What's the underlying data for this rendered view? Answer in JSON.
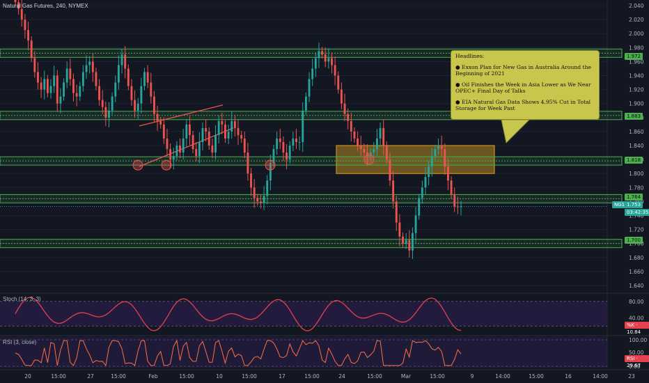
{
  "title": "Natural Gas Futures, 240, NYMEX",
  "headlines": {
    "title": "Headlines:",
    "items": [
      "● Exxon Plan for New Gas in Australia Around the Beginning of 2021",
      "● Oil Finishes the Week in Asia Lower as We Near OPEC+ Final Day of Talks",
      "● EIA Natural Gas Data Shows 4.95% Cut in Total Storage for Week Past"
    ]
  },
  "colors": {
    "background": "#131722",
    "up": "#26a69a",
    "down": "#ef5350",
    "level": "#4caf50",
    "zone": "#d8a21e",
    "stoch": "#e5414e",
    "rsi": "#ff7043",
    "pane_bg": "#2a1e4a"
  },
  "chart_data": {
    "type": "candlestick",
    "title": "Natural Gas Futures, 240, NYMEX",
    "x_ticks": [
      "20",
      "15:00",
      "27",
      "15:00",
      "Feb",
      "15:00",
      "10",
      "15:00",
      "17",
      "15:00",
      "24",
      "15:00",
      "Mar",
      "15:00",
      "9",
      "14:00",
      "15:00",
      "16",
      "14:00",
      "23"
    ],
    "y_ticks": [
      "2.040",
      "2.020",
      "2.000",
      "1.980",
      "1.960",
      "1.940",
      "1.920",
      "1.900",
      "1.880",
      "1.860",
      "1.840",
      "1.820",
      "1.800",
      "1.780",
      "1.760",
      "1.740",
      "1.720",
      "1.700",
      "1.680",
      "1.660",
      "1.640"
    ],
    "ylim": [
      1.632,
      2.048
    ],
    "support_resistance_levels": [
      {
        "label": "1.972",
        "value": 1.972
      },
      {
        "label": "1.883",
        "value": 1.883
      },
      {
        "label": "1.818",
        "value": 1.818
      },
      {
        "label": "1.764",
        "value": 1.764
      },
      {
        "label": "1.700",
        "value": 1.7
      }
    ],
    "current_price": {
      "symbol": "NG1!",
      "value": "1.753",
      "countdown": "03:42:35"
    },
    "series_closes": [
      2.045,
      2.035,
      2.02,
      2.005,
      1.99,
      1.965,
      1.945,
      1.93,
      1.92,
      1.935,
      1.915,
      1.925,
      1.94,
      1.9,
      1.91,
      1.93,
      1.95,
      1.935,
      1.915,
      1.91,
      1.925,
      1.945,
      1.955,
      1.96,
      1.945,
      1.925,
      1.905,
      1.895,
      1.88,
      1.89,
      1.91,
      1.93,
      1.955,
      1.97,
      1.95,
      1.925,
      1.905,
      1.89,
      1.9,
      1.925,
      1.945,
      1.93,
      1.91,
      1.885,
      1.875,
      1.87,
      1.85,
      1.835,
      1.82,
      1.825,
      1.84,
      1.83,
      1.85,
      1.87,
      1.855,
      1.835,
      1.825,
      1.845,
      1.865,
      1.86,
      1.84,
      1.83,
      1.855,
      1.875,
      1.87,
      1.85,
      1.86,
      1.875,
      1.865,
      1.855,
      1.85,
      1.83,
      1.8,
      1.78,
      1.765,
      1.76,
      1.758,
      1.768,
      1.79,
      1.815,
      1.835,
      1.85,
      1.845,
      1.83,
      1.82,
      1.84,
      1.85,
      1.845,
      1.845,
      1.89,
      1.91,
      1.935,
      1.95,
      1.965,
      1.975,
      1.97,
      1.96,
      1.965,
      1.955,
      1.94,
      1.92,
      1.9,
      1.885,
      1.875,
      1.86,
      1.85,
      1.84,
      1.835,
      1.83,
      1.825,
      1.83,
      1.835,
      1.85,
      1.865,
      1.84,
      1.82,
      1.79,
      1.76,
      1.73,
      1.71,
      1.7,
      1.705,
      1.69,
      1.715,
      1.74,
      1.765,
      1.78,
      1.795,
      1.81,
      1.825,
      1.835,
      1.84,
      1.835,
      1.81,
      1.79,
      1.77,
      1.753,
      1.752,
      1.753
    ],
    "stoch": {
      "label": "Stoch (14, 3, 3)",
      "k_value": "10.84",
      "y_ticks": [
        "80.00",
        "40.00"
      ]
    },
    "rsi": {
      "label": "RSI (3, close)",
      "value": "29.67",
      "y_ticks": [
        "100.00",
        "50.00",
        "0.00"
      ]
    }
  }
}
